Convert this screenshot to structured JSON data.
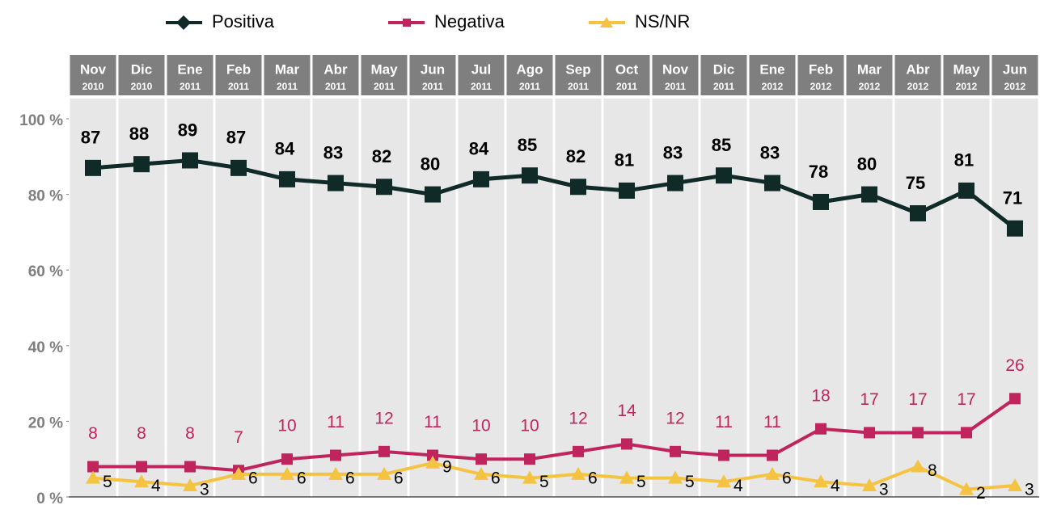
{
  "chart_data": {
    "type": "line",
    "categories": [
      "Nov",
      "Dic",
      "Ene",
      "Feb",
      "Mar",
      "Abr",
      "May",
      "Jun",
      "Jul",
      "Ago",
      "Sep",
      "Oct",
      "Nov",
      "Dic",
      "Ene",
      "Feb",
      "Mar",
      "Abr",
      "May",
      "Jun"
    ],
    "category_years": [
      "2010",
      "2010",
      "2011",
      "2011",
      "2011",
      "2011",
      "2011",
      "2011",
      "2011",
      "2011",
      "2011",
      "2011",
      "2011",
      "2011",
      "2012",
      "2012",
      "2012",
      "2012",
      "2012",
      "2012"
    ],
    "series": [
      {
        "name": "Positiva",
        "color": "#0f2a27",
        "values": [
          87,
          88,
          89,
          87,
          84,
          83,
          82,
          80,
          84,
          85,
          82,
          81,
          83,
          85,
          83,
          78,
          80,
          75,
          81,
          71
        ]
      },
      {
        "name": "Negativa",
        "color": "#c0245c",
        "values": [
          8,
          8,
          8,
          7,
          10,
          11,
          12,
          11,
          10,
          10,
          12,
          14,
          12,
          11,
          11,
          18,
          17,
          17,
          17,
          26
        ]
      },
      {
        "name": "NS/NR",
        "color": "#f5c342",
        "values": [
          5,
          4,
          3,
          6,
          6,
          6,
          6,
          9,
          6,
          5,
          6,
          5,
          5,
          4,
          6,
          4,
          3,
          8,
          2,
          3
        ]
      }
    ],
    "ylim": [
      0,
      100
    ],
    "yticks": [
      {
        "value": 0,
        "label": "0 %"
      },
      {
        "value": 20,
        "label": "20 %"
      },
      {
        "value": 40,
        "label": "40 %"
      },
      {
        "value": 60,
        "label": "60 %"
      },
      {
        "value": 80,
        "label": "80 %"
      },
      {
        "value": 100,
        "label": "100 %"
      }
    ],
    "legend": "top"
  }
}
